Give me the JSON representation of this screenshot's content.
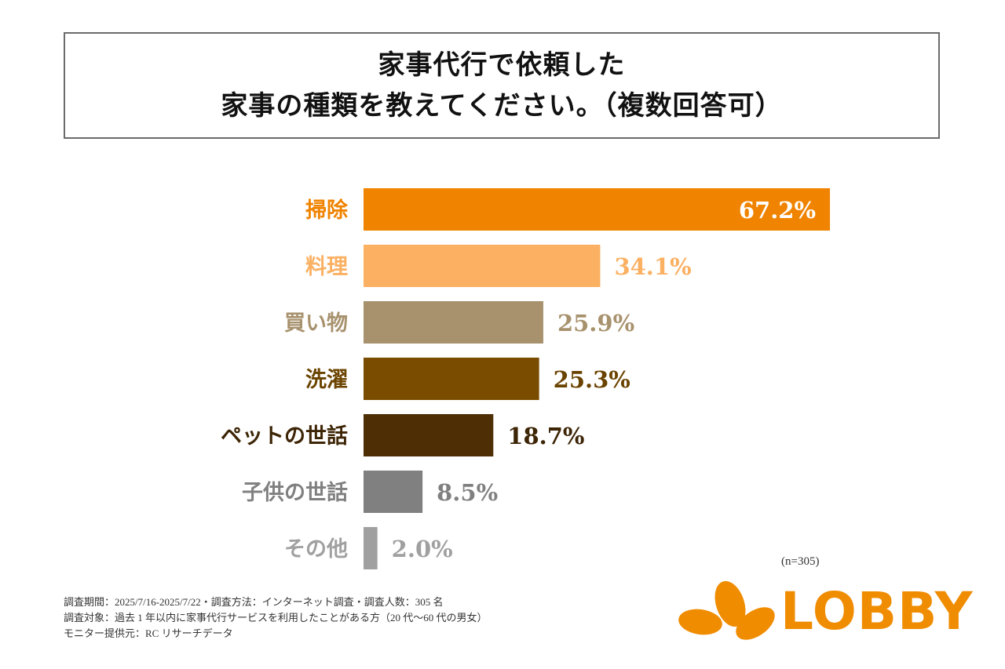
{
  "title": {
    "line1": "家事代行で依頼した",
    "line2": "家事の種類を教えてください。（複数回答可）"
  },
  "chart_data": {
    "type": "bar",
    "orientation": "horizontal",
    "title": "家事代行で依頼した家事の種類を教えてください。（複数回答可）",
    "xlabel": "",
    "ylabel": "",
    "unit": "%",
    "xlim": [
      0,
      100
    ],
    "grid": false,
    "categories": [
      "掃除",
      "料理",
      "買い物",
      "洗濯",
      "ペットの世話",
      "子供の世話",
      "その他"
    ],
    "values": [
      67.2,
      34.1,
      25.9,
      25.3,
      18.7,
      8.5,
      2.0
    ],
    "value_labels": [
      "67.2%",
      "34.1%",
      "25.9%",
      "25.3%",
      "18.7%",
      "8.5%",
      "2.0%"
    ],
    "colors": [
      "#f08300",
      "#fbb062",
      "#a8926e",
      "#7a4c00",
      "#4e2f05",
      "#808080",
      "#a0a0a0"
    ],
    "label_colors": [
      "#f08300",
      "#fbb062",
      "#a8926e",
      "#6b4300",
      "#3d2506",
      "#808080",
      "#a0a0a0"
    ],
    "value_label_inside": [
      true,
      false,
      false,
      false,
      false,
      false,
      false
    ],
    "inside_label_color": "#ffffff"
  },
  "sample": "(n=305)",
  "notes": [
    "調査期間：2025/7/16-2025/7/22・調査方法：インターネット調査・調査人数：305 名",
    "調査対象：過去 1 年以内に家事代行サービスを利用したことがある方（20 代〜60 代の男女）",
    "モニター提供元：RC リサーチデータ"
  ],
  "logo": {
    "text": "LOBBY",
    "color": "#f08c00"
  }
}
